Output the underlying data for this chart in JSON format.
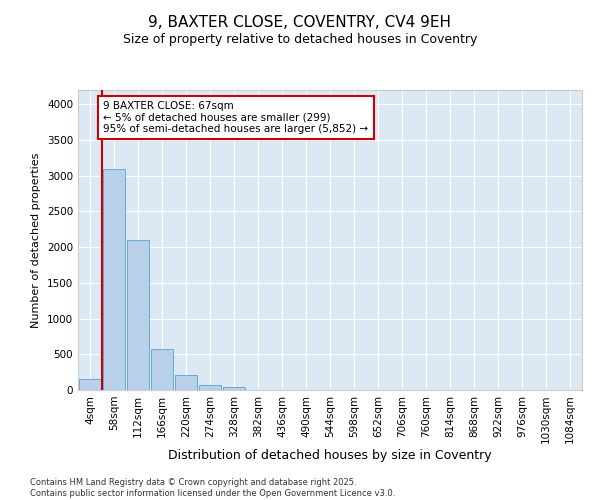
{
  "title": "9, BAXTER CLOSE, COVENTRY, CV4 9EH",
  "subtitle": "Size of property relative to detached houses in Coventry",
  "xlabel": "Distribution of detached houses by size in Coventry",
  "ylabel": "Number of detached properties",
  "categories": [
    "4sqm",
    "58sqm",
    "112sqm",
    "166sqm",
    "220sqm",
    "274sqm",
    "328sqm",
    "382sqm",
    "436sqm",
    "490sqm",
    "544sqm",
    "598sqm",
    "652sqm",
    "706sqm",
    "760sqm",
    "814sqm",
    "868sqm",
    "922sqm",
    "976sqm",
    "1030sqm",
    "1084sqm"
  ],
  "bar_values": [
    150,
    3100,
    2100,
    575,
    210,
    70,
    40,
    0,
    0,
    0,
    0,
    0,
    0,
    0,
    0,
    0,
    0,
    0,
    0,
    0,
    0
  ],
  "bar_color": "#b8d0e8",
  "bar_edge_color": "#6aaad4",
  "property_line_color": "#cc0000",
  "property_line_x": 0.5,
  "annotation_text": "9 BAXTER CLOSE: 67sqm\n← 5% of detached houses are smaller (299)\n95% of semi-detached houses are larger (5,852) →",
  "annotation_box_color": "#cc0000",
  "ylim": [
    0,
    4200
  ],
  "yticks": [
    0,
    500,
    1000,
    1500,
    2000,
    2500,
    3000,
    3500,
    4000
  ],
  "background_color": "#dce9f5",
  "footer_text": "Contains HM Land Registry data © Crown copyright and database right 2025.\nContains public sector information licensed under the Open Government Licence v3.0.",
  "title_fontsize": 11,
  "subtitle_fontsize": 9,
  "xlabel_fontsize": 9,
  "ylabel_fontsize": 8,
  "tick_fontsize": 7.5,
  "footer_fontsize": 6,
  "annotation_fontsize": 7.5
}
